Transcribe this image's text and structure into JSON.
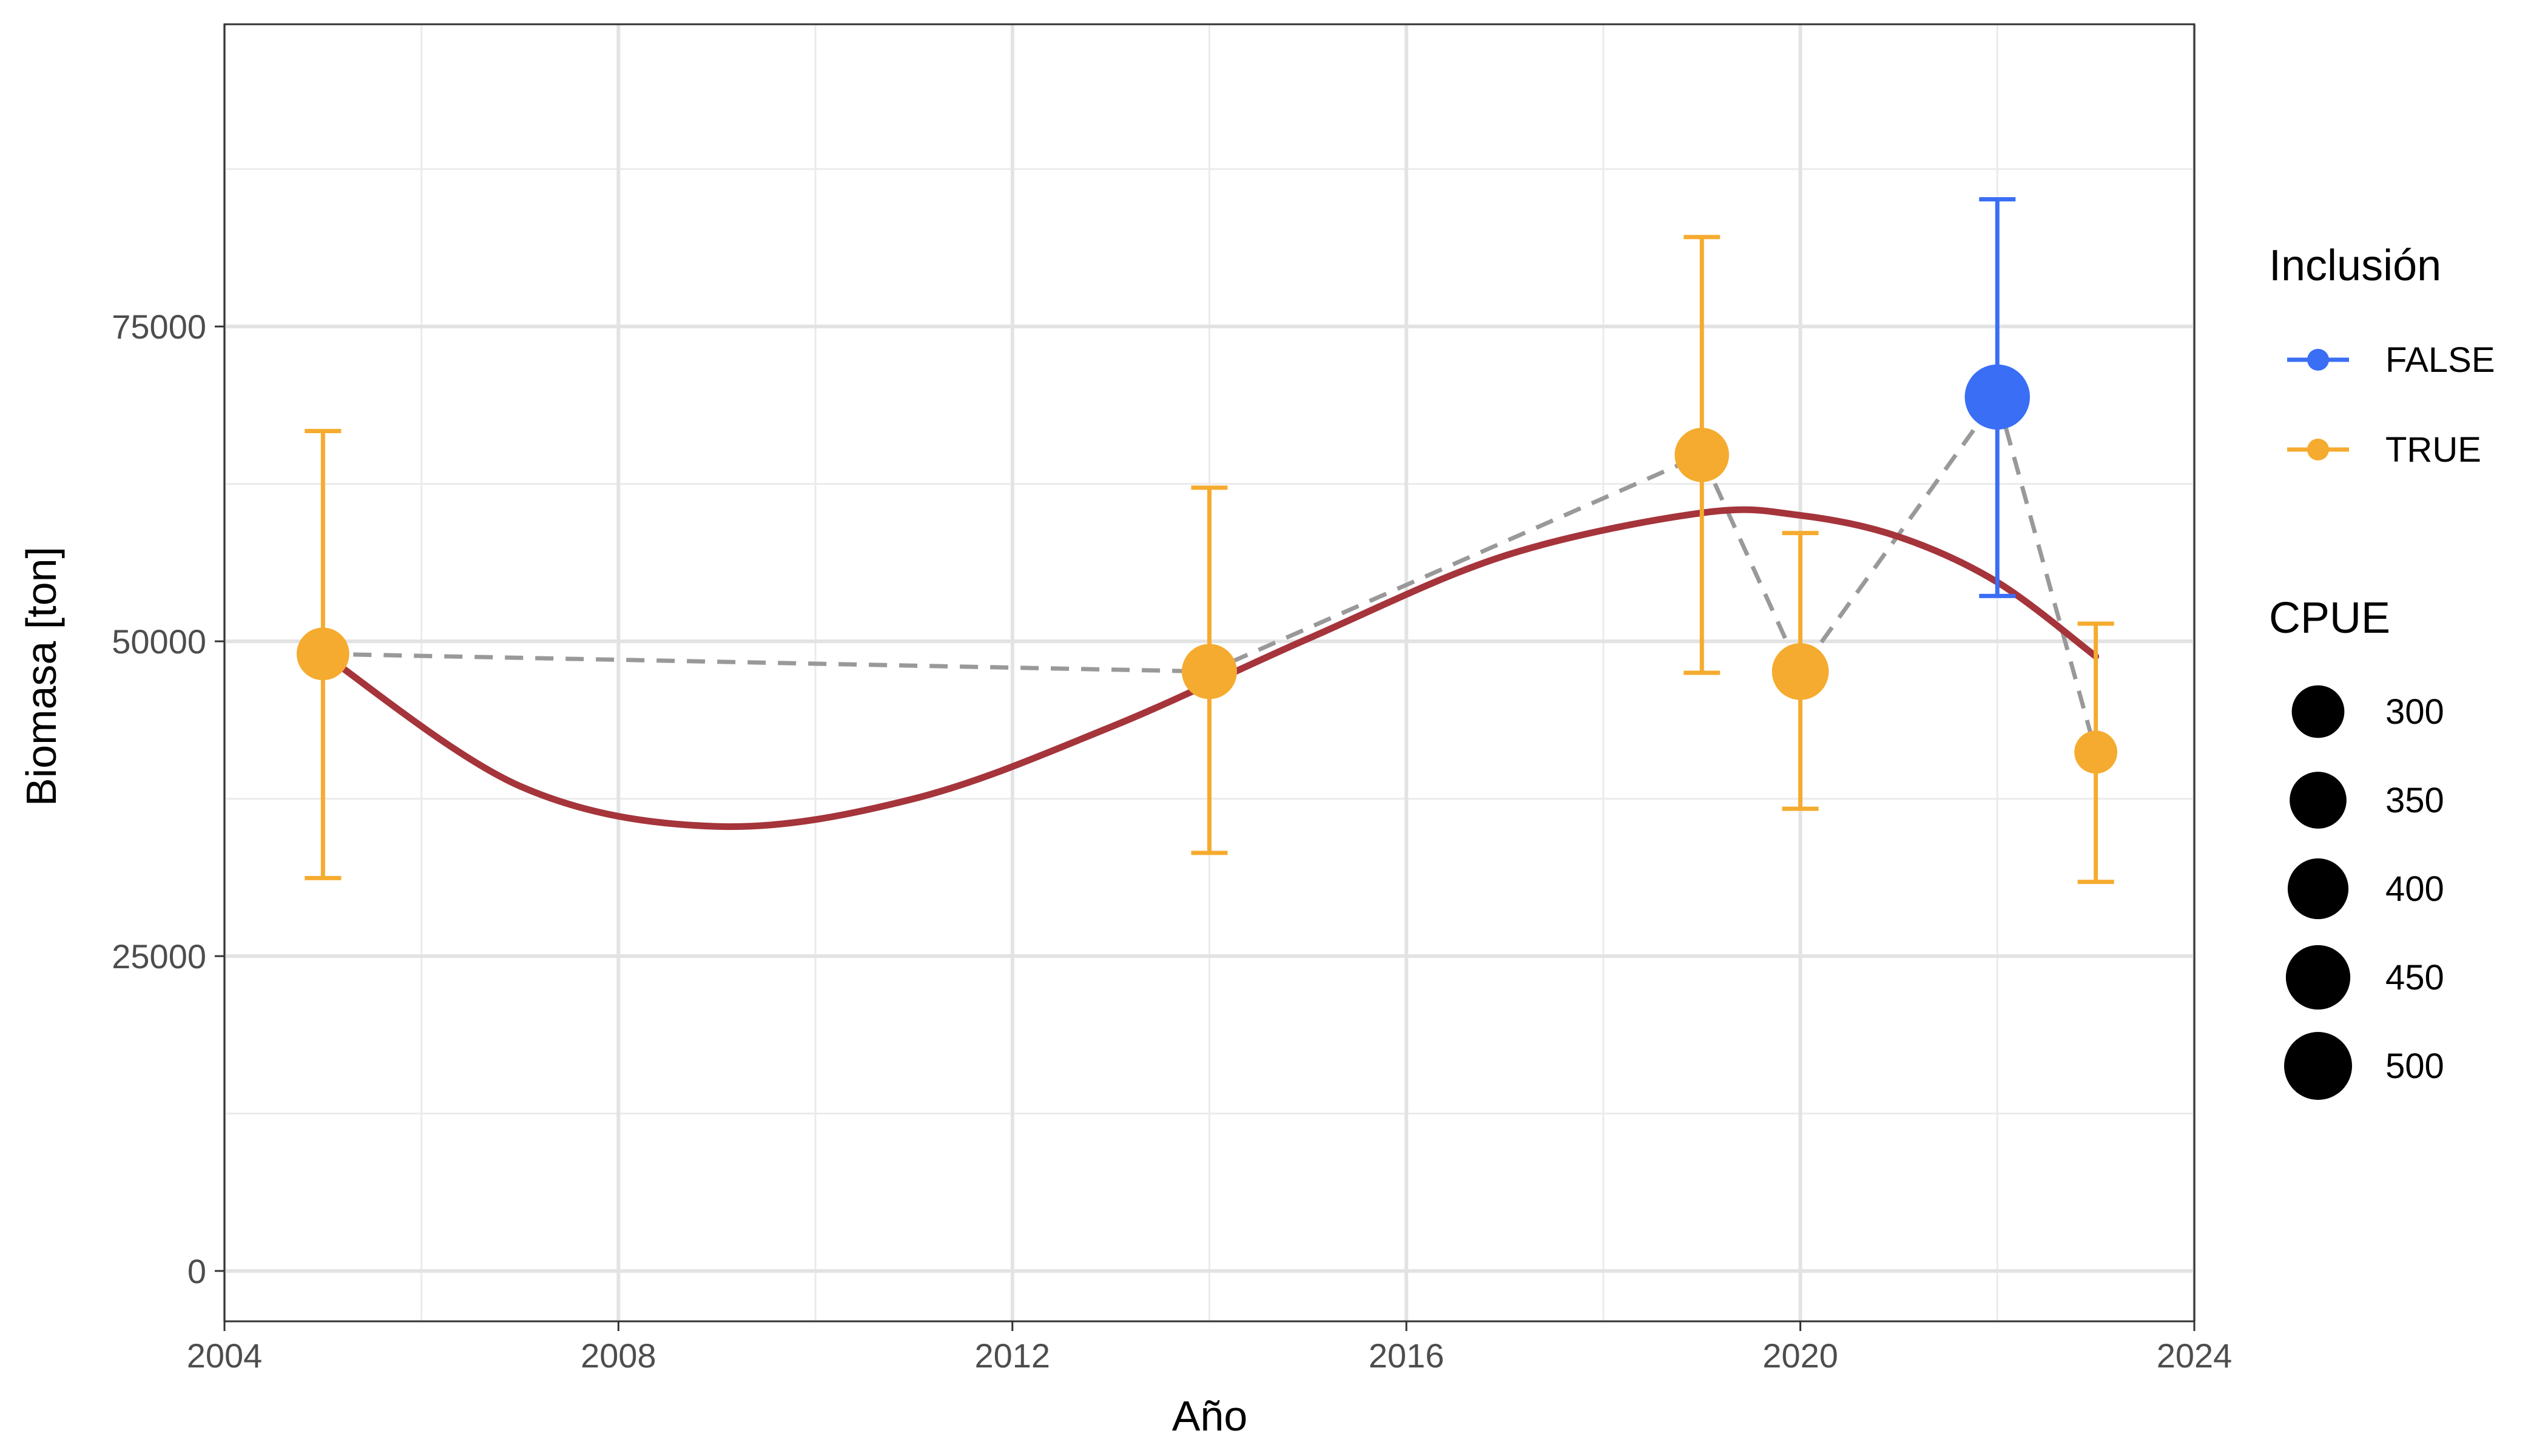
{
  "chart_data": {
    "type": "scatter",
    "title": "",
    "xlabel": "Año",
    "ylabel": "Biomasa [ton]",
    "xlim": [
      2004,
      2024
    ],
    "ylim": [
      -4000,
      99000
    ],
    "x_ticks": [
      2004,
      2008,
      2012,
      2016,
      2020,
      2024
    ],
    "y_ticks": [
      0,
      25000,
      50000,
      75000
    ],
    "grid": true,
    "legend_position": "right",
    "colors": {
      "TRUE": "#F5AB2F",
      "FALSE": "#3A6EF5",
      "trend": "#A5343B",
      "connector": "#999999"
    },
    "points": [
      {
        "x": 2005,
        "y": 49000,
        "ymin": 31200,
        "ymax": 66700,
        "inclusion": "TRUE",
        "cpue": 300
      },
      {
        "x": 2014,
        "y": 47600,
        "ymin": 33200,
        "ymax": 62200,
        "inclusion": "TRUE",
        "cpue": 330
      },
      {
        "x": 2019,
        "y": 64800,
        "ymin": 47500,
        "ymax": 82100,
        "inclusion": "TRUE",
        "cpue": 320
      },
      {
        "x": 2020,
        "y": 47600,
        "ymin": 36700,
        "ymax": 58600,
        "inclusion": "TRUE",
        "cpue": 350
      },
      {
        "x": 2022,
        "y": 69400,
        "ymin": 53600,
        "ymax": 85100,
        "inclusion": "FALSE",
        "cpue": 460
      },
      {
        "x": 2023,
        "y": 41200,
        "ymin": 30900,
        "ymax": 51400,
        "inclusion": "TRUE",
        "cpue": 200
      }
    ],
    "trend_line": {
      "x": [
        2005,
        2007,
        2009,
        2011,
        2013,
        2015,
        2017,
        2019,
        2020,
        2021,
        2022,
        2023
      ],
      "y": [
        49000,
        38500,
        35300,
        37500,
        43200,
        50200,
        56800,
        60200,
        60000,
        58300,
        54700,
        48800
      ]
    },
    "legend": {
      "color_title": "Inclusión",
      "color_items": [
        "FALSE",
        "TRUE"
      ],
      "size_title": "CPUE",
      "size_items": [
        300,
        350,
        400,
        450,
        500
      ]
    }
  }
}
